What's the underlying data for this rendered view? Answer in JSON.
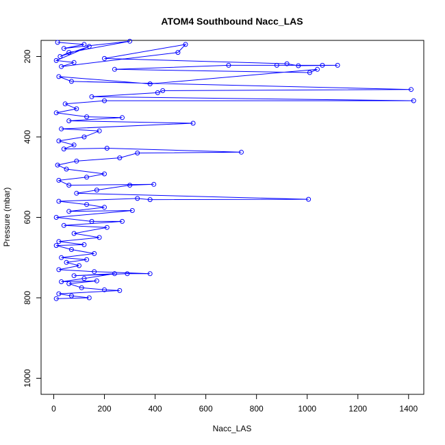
{
  "chart_data": {
    "type": "scatter",
    "title": "ATOM4 Southbound Nacc_LAS",
    "xlabel": "Nacc_LAS",
    "ylabel": "Pressure (mbar)",
    "xlim": [
      -50,
      1460
    ],
    "ylim": [
      1040,
      160
    ],
    "y_reversed": true,
    "xticks": [
      0,
      200,
      400,
      600,
      800,
      1000,
      1200,
      1400
    ],
    "yticks": [
      200,
      400,
      600,
      800,
      1000
    ],
    "marker": "open-circle",
    "line": true,
    "color": "#0000ff",
    "series": [
      {
        "name": "Nacc_LAS",
        "points": [
          [
            15,
            165
          ],
          [
            120,
            170
          ],
          [
            40,
            180
          ],
          [
            300,
            162
          ],
          [
            60,
            190
          ],
          [
            25,
            200
          ],
          [
            140,
            175
          ],
          [
            10,
            210
          ],
          [
            80,
            215
          ],
          [
            30,
            225
          ],
          [
            490,
            190
          ],
          [
            520,
            170
          ],
          [
            200,
            205
          ],
          [
            920,
            218
          ],
          [
            965,
            223
          ],
          [
            1120,
            222
          ],
          [
            880,
            222
          ],
          [
            1060,
            222
          ],
          [
            690,
            222
          ],
          [
            240,
            232
          ],
          [
            1010,
            240
          ],
          [
            1040,
            232
          ],
          [
            380,
            268
          ],
          [
            20,
            250
          ],
          [
            70,
            262
          ],
          [
            1410,
            282
          ],
          [
            430,
            285
          ],
          [
            410,
            290
          ],
          [
            150,
            300
          ],
          [
            1420,
            310
          ],
          [
            200,
            310
          ],
          [
            45,
            318
          ],
          [
            90,
            330
          ],
          [
            10,
            340
          ],
          [
            130,
            350
          ],
          [
            270,
            352
          ],
          [
            60,
            360
          ],
          [
            550,
            366
          ],
          [
            30,
            380
          ],
          [
            180,
            385
          ],
          [
            120,
            400
          ],
          [
            20,
            410
          ],
          [
            80,
            420
          ],
          [
            40,
            430
          ],
          [
            210,
            428
          ],
          [
            740,
            438
          ],
          [
            330,
            440
          ],
          [
            260,
            452
          ],
          [
            90,
            460
          ],
          [
            15,
            470
          ],
          [
            50,
            480
          ],
          [
            200,
            492
          ],
          [
            130,
            500
          ],
          [
            20,
            508
          ],
          [
            60,
            520
          ],
          [
            395,
            518
          ],
          [
            300,
            520
          ],
          [
            170,
            532
          ],
          [
            90,
            540
          ],
          [
            1005,
            555
          ],
          [
            380,
            556
          ],
          [
            330,
            553
          ],
          [
            20,
            560
          ],
          [
            130,
            568
          ],
          [
            200,
            575
          ],
          [
            60,
            585
          ],
          [
            310,
            583
          ],
          [
            10,
            600
          ],
          [
            150,
            610
          ],
          [
            270,
            610
          ],
          [
            40,
            620
          ],
          [
            210,
            625
          ],
          [
            80,
            640
          ],
          [
            180,
            650
          ],
          [
            20,
            660
          ],
          [
            120,
            668
          ],
          [
            10,
            670
          ],
          [
            70,
            680
          ],
          [
            160,
            690
          ],
          [
            30,
            700
          ],
          [
            130,
            705
          ],
          [
            50,
            712
          ],
          [
            100,
            720
          ],
          [
            20,
            730
          ],
          [
            160,
            735
          ],
          [
            380,
            740
          ],
          [
            290,
            740
          ],
          [
            80,
            745
          ],
          [
            240,
            740
          ],
          [
            120,
            752
          ],
          [
            30,
            760
          ],
          [
            170,
            758
          ],
          [
            60,
            765
          ],
          [
            110,
            775
          ],
          [
            200,
            780
          ],
          [
            260,
            782
          ],
          [
            20,
            790
          ],
          [
            70,
            795
          ],
          [
            140,
            800
          ],
          [
            10,
            802
          ]
        ]
      }
    ]
  }
}
